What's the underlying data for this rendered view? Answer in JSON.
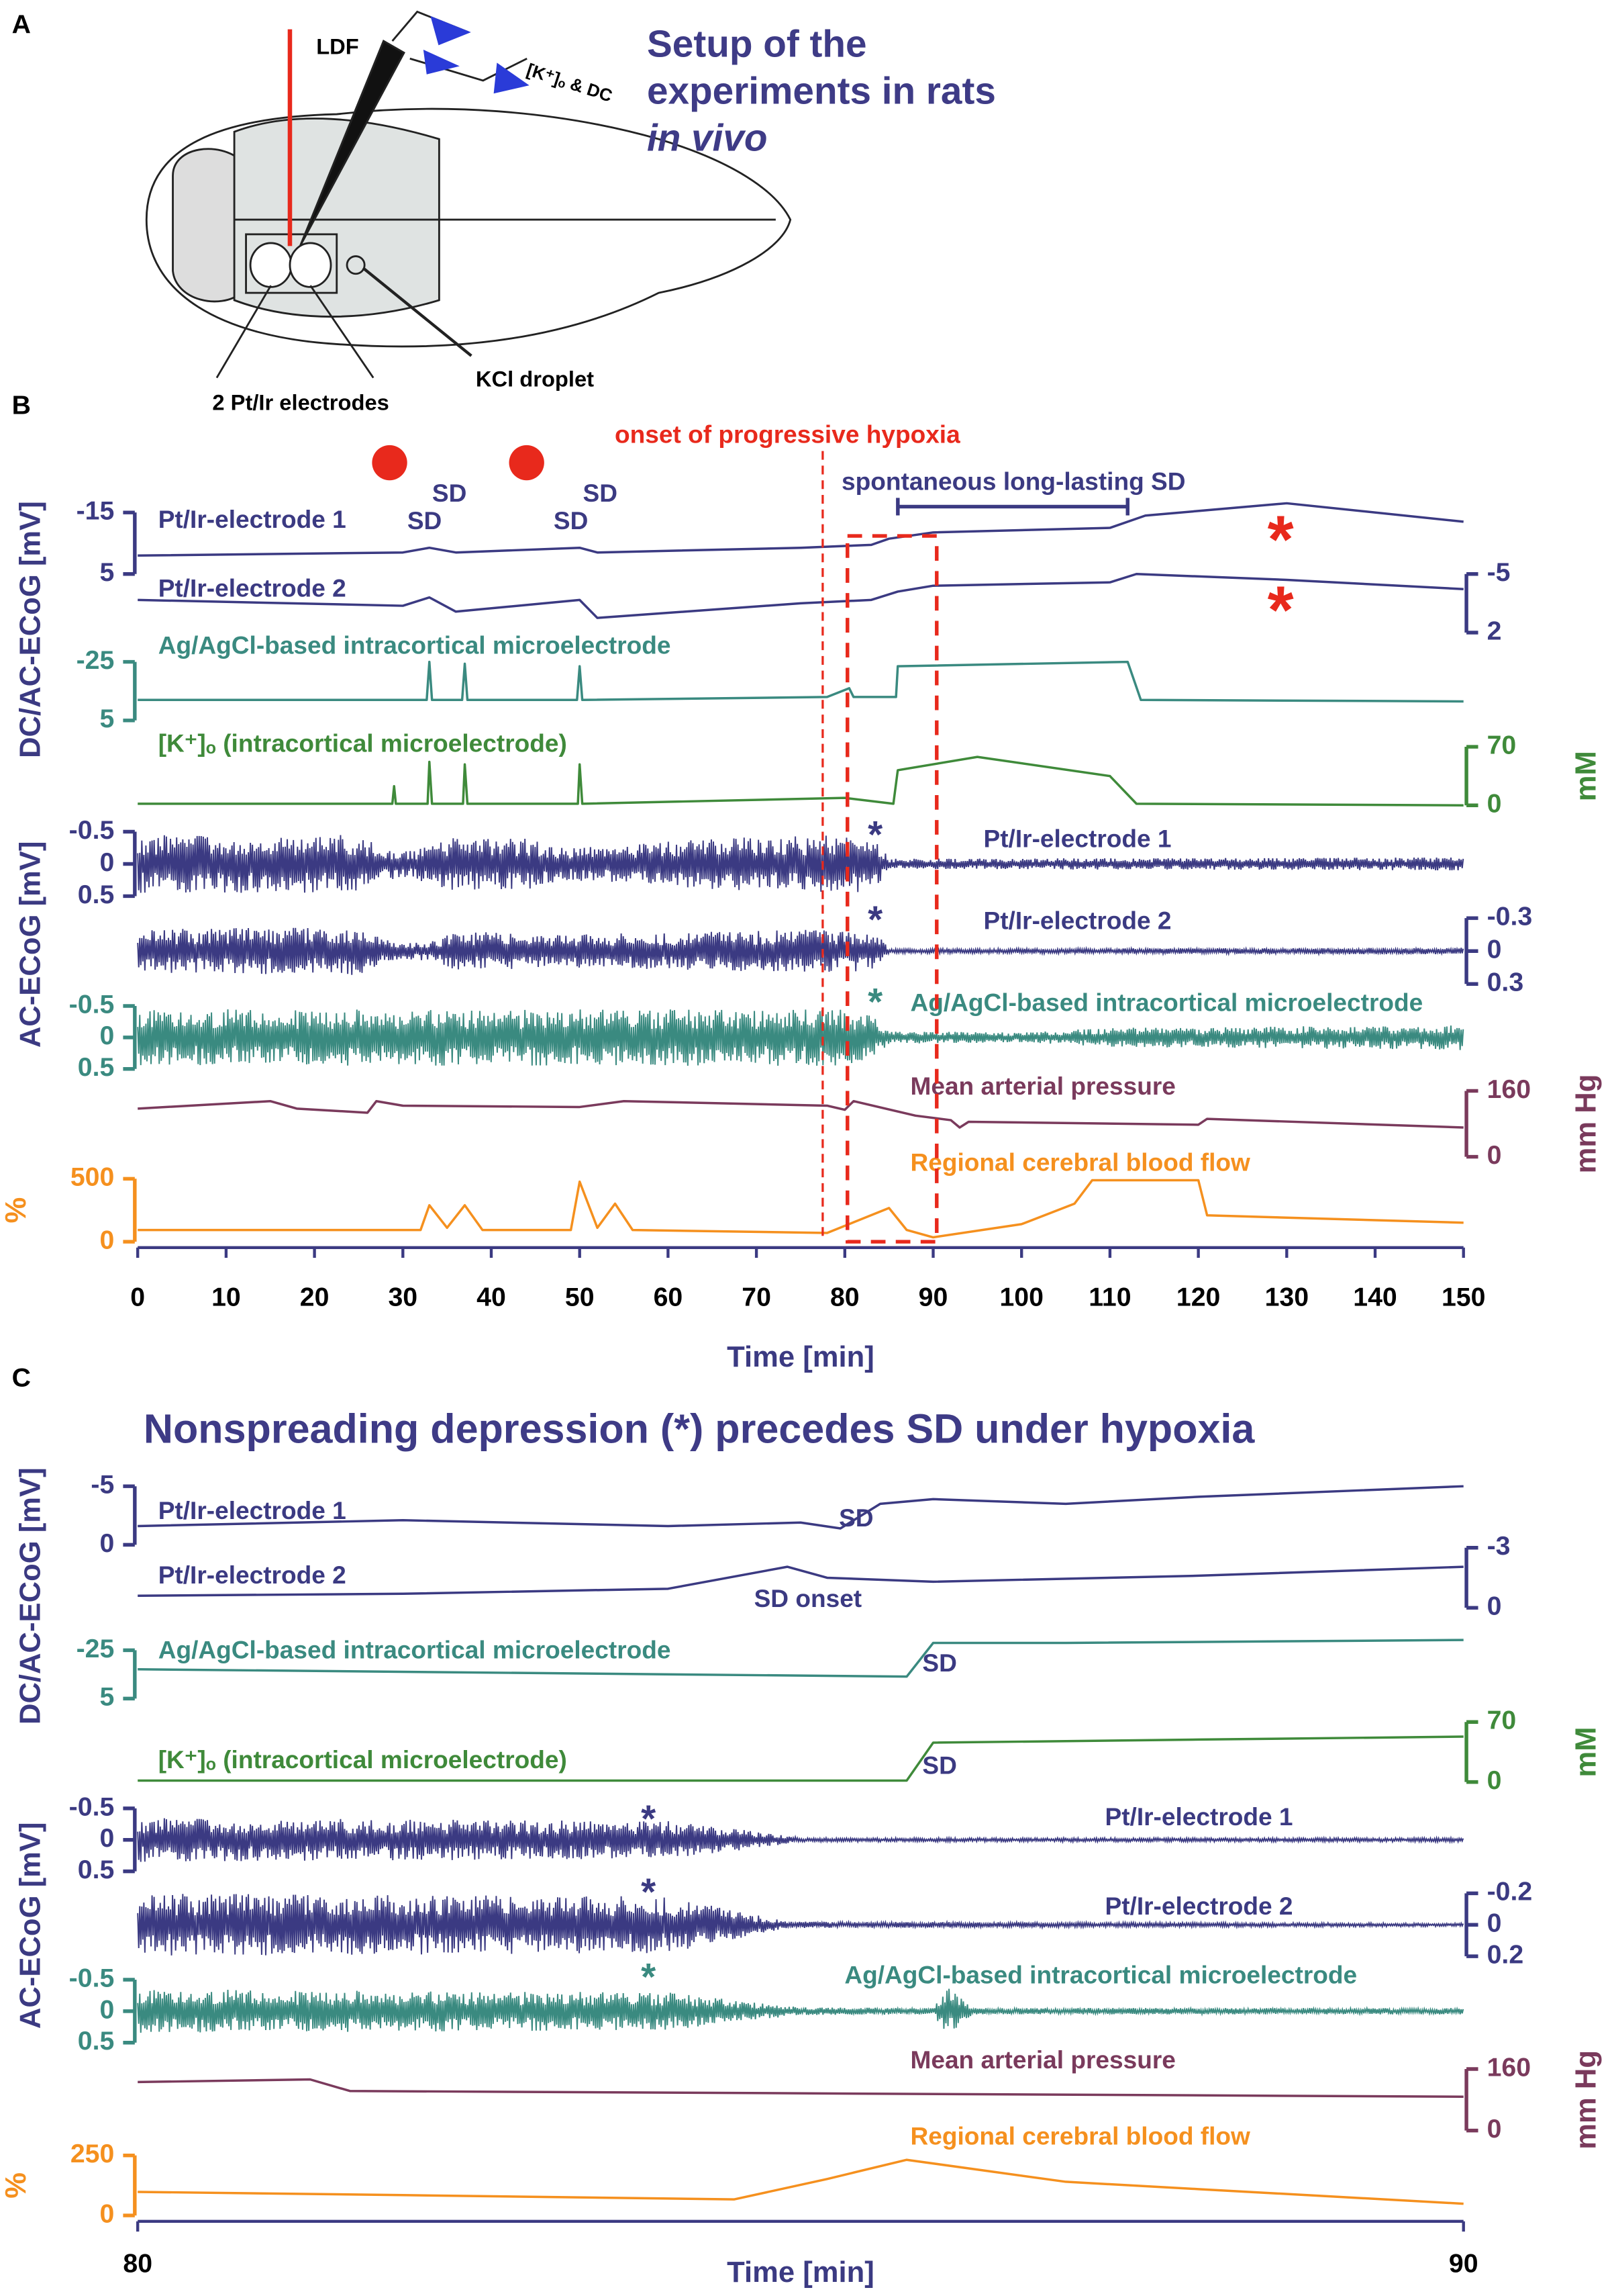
{
  "panel_a": {
    "label": "A",
    "ldf": "LDF",
    "probe": "[K⁺]ₒ & DC",
    "title_1": "Setup of the",
    "title_2": "experiments in rats",
    "title_3": "in vivo",
    "electrodes": "2 Pt/Ir electrodes",
    "kcl": "KCl droplet"
  },
  "panel_b": {
    "label": "B",
    "hypoxia_label": "onset of progressive hypoxia",
    "hypoxia_onset": 77.5,
    "box_range": [
      80.3,
      90.4
    ],
    "kcl_times": [
      28.5,
      44
    ],
    "spont_label": "spontaneous long-lasting SD",
    "spont_range": [
      86,
      112
    ],
    "annotations": [
      "SD",
      "SD",
      "SD",
      "SD",
      "*",
      "*",
      "*",
      "*",
      "*"
    ],
    "ylabel_dc": "DC/AC-ECoG [mV]",
    "ylabel_ac": "AC-ECoG [mV]",
    "xlabel": "Time [min]",
    "xlim": [
      0,
      150
    ],
    "xticks": [
      0,
      10,
      20,
      30,
      40,
      50,
      60,
      70,
      80,
      90,
      100,
      110,
      120,
      130,
      140,
      150
    ],
    "tracks": [
      {
        "label": "Pt/Ir-electrode 1",
        "color": "#3b3a82",
        "kind": "line",
        "axis_side": "left",
        "lim": [
          -15,
          5
        ],
        "ticks": [
          -15,
          5
        ],
        "points": [
          [
            0,
            -1
          ],
          [
            30,
            -2
          ],
          [
            33,
            -3.5
          ],
          [
            36,
            -2
          ],
          [
            50,
            -3.5
          ],
          [
            52,
            -2
          ],
          [
            75,
            -3.5
          ],
          [
            83,
            -4.5
          ],
          [
            85,
            -6.5
          ],
          [
            90,
            -8.5
          ],
          [
            110,
            -10
          ],
          [
            114,
            -14
          ],
          [
            130,
            -18
          ],
          [
            150,
            -12
          ]
        ]
      },
      {
        "label": "Pt/Ir-electrode 2",
        "color": "#3b3a82",
        "kind": "line",
        "axis_side": "right",
        "lim": [
          -5,
          2
        ],
        "ticks": [
          -5,
          2
        ],
        "points": [
          [
            0,
            -1.9
          ],
          [
            30,
            -1.2
          ],
          [
            33,
            -2.2
          ],
          [
            36,
            -0.5
          ],
          [
            50,
            -1.9
          ],
          [
            52,
            0.25
          ],
          [
            75,
            -1.5
          ],
          [
            83,
            -1.9
          ],
          [
            86,
            -2.9
          ],
          [
            90,
            -3.6
          ],
          [
            110,
            -4
          ],
          [
            113,
            -5
          ],
          [
            130,
            -4.3
          ],
          [
            150,
            -3.2
          ]
        ]
      },
      {
        "label": "Ag/AgCl-based intracortical microelectrode",
        "color": "#3a8a80",
        "kind": "line",
        "axis_side": "left",
        "lim": [
          -25,
          5
        ],
        "ticks": [
          -25,
          5
        ],
        "points": [
          [
            0,
            -5.5
          ],
          [
            32.7,
            -5.5
          ],
          [
            33,
            -25
          ],
          [
            33.3,
            -5.5
          ],
          [
            36.7,
            -5.5
          ],
          [
            37,
            -24
          ],
          [
            37.3,
            -5.5
          ],
          [
            49.7,
            -5.5
          ],
          [
            50,
            -22.75
          ],
          [
            50.3,
            -5.5
          ],
          [
            78,
            -7
          ],
          [
            80.5,
            -11.5
          ],
          [
            81,
            -7
          ],
          [
            85.8,
            -7
          ],
          [
            86,
            -22.75
          ],
          [
            112,
            -25
          ],
          [
            113.5,
            -5.5
          ],
          [
            150,
            -4.75
          ]
        ]
      },
      {
        "label": "[K⁺]ₒ (intracortical microelectrode)",
        "color": "#3f8a3a",
        "kind": "line",
        "axis_side": "right",
        "unit": "mM",
        "lim": [
          70,
          0
        ],
        "ticks": [
          70,
          0
        ],
        "points": [
          [
            0,
            2
          ],
          [
            28.8,
            2
          ],
          [
            29,
            23
          ],
          [
            29.2,
            2
          ],
          [
            32.8,
            2
          ],
          [
            33,
            52
          ],
          [
            33.3,
            2
          ],
          [
            36.8,
            2
          ],
          [
            37,
            49
          ],
          [
            37.3,
            2
          ],
          [
            49.8,
            2
          ],
          [
            50,
            49
          ],
          [
            50.3,
            2
          ],
          [
            80,
            9
          ],
          [
            85.5,
            2
          ],
          [
            86,
            42
          ],
          [
            95,
            58
          ],
          [
            110,
            35
          ],
          [
            113,
            2
          ],
          [
            150,
            0
          ]
        ]
      },
      {
        "label": "Pt/Ir-electrode 1",
        "color": "#3b3a82",
        "kind": "noise",
        "axis_side": "left",
        "lim": [
          -0.5,
          0.5
        ],
        "ticks": [
          -0.5,
          0,
          0.5
        ],
        "points": [
          [
            0,
            0.45
          ],
          [
            25,
            0.45
          ],
          [
            28,
            0.25
          ],
          [
            31,
            0.2
          ],
          [
            34,
            0.4
          ],
          [
            45,
            0.4
          ],
          [
            48,
            0.25
          ],
          [
            55,
            0.3
          ],
          [
            65,
            0.4
          ],
          [
            82,
            0.45
          ],
          [
            84,
            0.3
          ],
          [
            85,
            0.08
          ],
          [
            150,
            0.1
          ]
        ]
      },
      {
        "label": "Pt/Ir-electrode 2",
        "color": "#3b3a82",
        "kind": "noise",
        "axis_side": "right",
        "lim": [
          -0.3,
          0.3
        ],
        "ticks": [
          -0.3,
          0,
          0.3
        ],
        "points": [
          [
            0,
            0.2
          ],
          [
            25,
            0.22
          ],
          [
            28,
            0.1
          ],
          [
            33,
            0.08
          ],
          [
            36,
            0.18
          ],
          [
            48,
            0.15
          ],
          [
            55,
            0.16
          ],
          [
            80,
            0.2
          ],
          [
            84,
            0.15
          ],
          [
            85,
            0.02
          ],
          [
            150,
            0.03
          ]
        ]
      },
      {
        "label": "Ag/AgCl-based intracortical microelectrode",
        "color": "#3a8a80",
        "kind": "noise",
        "axis_side": "left",
        "lim": [
          -0.5,
          0.5
        ],
        "ticks": [
          -0.5,
          0,
          0.5
        ],
        "points": [
          [
            0,
            0.45
          ],
          [
            80,
            0.45
          ],
          [
            83,
            0.35
          ],
          [
            85,
            0.1
          ],
          [
            100,
            0.08
          ],
          [
            110,
            0.15
          ],
          [
            150,
            0.2
          ]
        ]
      },
      {
        "label": "Mean arterial pressure",
        "color": "#7a3a5c",
        "kind": "line",
        "axis_side": "right",
        "unit": "mm Hg",
        "lim": [
          160,
          0
        ],
        "ticks": [
          160,
          0
        ],
        "points": [
          [
            0,
            117
          ],
          [
            15,
            135
          ],
          [
            18,
            117
          ],
          [
            26,
            107
          ],
          [
            27,
            135
          ],
          [
            30,
            124
          ],
          [
            50,
            121
          ],
          [
            55,
            135
          ],
          [
            78,
            124
          ],
          [
            80,
            114
          ],
          [
            81,
            135
          ],
          [
            88,
            100
          ],
          [
            92,
            89
          ],
          [
            93,
            71
          ],
          [
            94,
            85
          ],
          [
            120,
            78
          ],
          [
            121,
            92
          ],
          [
            150,
            71
          ]
        ]
      },
      {
        "label": "Regional cerebral blood flow",
        "color": "#f5901e",
        "kind": "line",
        "axis_side": "left",
        "unit": "%",
        "lim": [
          500,
          0
        ],
        "ticks": [
          500,
          0
        ],
        "points": [
          [
            0,
            93
          ],
          [
            32,
            93
          ],
          [
            33,
            290
          ],
          [
            35,
            110
          ],
          [
            37,
            290
          ],
          [
            39,
            93
          ],
          [
            49,
            93
          ],
          [
            50,
            477
          ],
          [
            52,
            110
          ],
          [
            54,
            302
          ],
          [
            56,
            93
          ],
          [
            78,
            70
          ],
          [
            85,
            267
          ],
          [
            87,
            93
          ],
          [
            90,
            35
          ],
          [
            100,
            140
          ],
          [
            106,
            302
          ],
          [
            108,
            488
          ],
          [
            120,
            488
          ],
          [
            121,
            209
          ],
          [
            150,
            151
          ]
        ]
      }
    ]
  },
  "panel_c": {
    "label": "C",
    "title": "Nonspreading depression (*) precedes SD under hypoxia",
    "annotations": [
      "SD",
      "SD onset",
      "SD",
      "SD",
      "*",
      "*",
      "*"
    ],
    "ylabel_dc": "DC/AC-ECoG [mV]",
    "ylabel_ac": "AC-ECoG [mV]",
    "xlabel": "Time [min]",
    "xlim": [
      80,
      90
    ],
    "xticks": [
      80,
      90
    ],
    "tracks": [
      {
        "label": "Pt/Ir-electrode 1",
        "color": "#3b3a82",
        "kind": "line",
        "axis_side": "left",
        "lim": [
          -5,
          0
        ],
        "ticks": [
          -5,
          0
        ],
        "points": [
          [
            80,
            -1.6
          ],
          [
            82,
            -2.1
          ],
          [
            84,
            -1.6
          ],
          [
            85,
            -1.9
          ],
          [
            85.3,
            -1.4
          ],
          [
            85.6,
            -3.5
          ],
          [
            86,
            -3.9
          ],
          [
            87,
            -3.5
          ],
          [
            88,
            -4.1
          ],
          [
            90,
            -5
          ]
        ]
      },
      {
        "label": "Pt/Ir-electrode 2",
        "color": "#3b3a82",
        "kind": "line",
        "axis_side": "right",
        "lim": [
          -3,
          0
        ],
        "ticks": [
          -3,
          0
        ],
        "points": [
          [
            80,
            -0.6
          ],
          [
            82,
            -0.7
          ],
          [
            84,
            -0.95
          ],
          [
            84.9,
            -2.05
          ],
          [
            85.2,
            -1.5
          ],
          [
            86,
            -1.3
          ],
          [
            88,
            -1.6
          ],
          [
            90,
            -2.05
          ]
        ]
      },
      {
        "label": "Ag/AgCl-based intracortical microelectrode",
        "color": "#3a8a80",
        "kind": "line",
        "axis_side": "left",
        "lim": [
          -25,
          5
        ],
        "ticks": [
          -25,
          5
        ],
        "points": [
          [
            80,
            -13.2
          ],
          [
            85.8,
            -8.6
          ],
          [
            86,
            -29.5
          ],
          [
            87,
            -29.5
          ],
          [
            90,
            -31.4
          ]
        ]
      },
      {
        "label": "[K⁺]ₒ (intracortical microelectrode)",
        "color": "#3f8a3a",
        "kind": "line",
        "axis_side": "right",
        "unit": "mM",
        "lim": [
          70,
          0
        ],
        "ticks": [
          70,
          0
        ],
        "points": [
          [
            80,
            1.7
          ],
          [
            85.8,
            1.7
          ],
          [
            86,
            46
          ],
          [
            88,
            49.5
          ],
          [
            90,
            53
          ]
        ]
      },
      {
        "label": "Pt/Ir-electrode 1",
        "color": "#3b3a82",
        "kind": "noise",
        "axis_side": "left",
        "lim": [
          -0.5,
          0.5
        ],
        "ticks": [
          -0.5,
          0,
          0.5
        ],
        "points": [
          [
            80,
            0.35
          ],
          [
            84,
            0.3
          ],
          [
            84.8,
            0.1
          ],
          [
            85,
            0.03
          ],
          [
            90,
            0.03
          ]
        ]
      },
      {
        "label": "Pt/Ir-electrode 2",
        "color": "#3b3a82",
        "kind": "noise",
        "axis_side": "right",
        "lim": [
          -0.2,
          0.2
        ],
        "ticks": [
          -0.2,
          0,
          0.2
        ],
        "points": [
          [
            80,
            0.2
          ],
          [
            84,
            0.18
          ],
          [
            84.9,
            0.02
          ],
          [
            90,
            0.01
          ]
        ]
      },
      {
        "label": "Ag/AgCl-based intracortical microelectrode",
        "color": "#3a8a80",
        "kind": "noise",
        "axis_side": "left",
        "lim": [
          -0.5,
          0.5
        ],
        "ticks": [
          -0.5,
          0,
          0.5
        ],
        "points": [
          [
            80,
            0.35
          ],
          [
            84,
            0.3
          ],
          [
            85,
            0.06
          ],
          [
            86,
            0.05
          ],
          [
            86.1,
            0.4
          ],
          [
            86.3,
            0.05
          ],
          [
            90,
            0.05
          ]
        ]
      },
      {
        "label": "Mean arterial pressure",
        "color": "#7a3a5c",
        "kind": "line",
        "axis_side": "right",
        "unit": "mm Hg",
        "lim": [
          160,
          0
        ],
        "ticks": [
          160,
          0
        ],
        "points": [
          [
            80,
            126
          ],
          [
            81.3,
            133
          ],
          [
            81.6,
            103
          ],
          [
            90,
            88
          ]
        ]
      },
      {
        "label": "Regional cerebral blood flow",
        "color": "#f5901e",
        "kind": "line",
        "axis_side": "left",
        "unit": "%",
        "lim": [
          250,
          0
        ],
        "ticks": [
          250,
          0
        ],
        "points": [
          [
            80,
            98
          ],
          [
            82,
            85
          ],
          [
            84.5,
            67
          ],
          [
            85.2,
            152
          ],
          [
            85.8,
            232
          ],
          [
            87,
            140
          ],
          [
            88,
            110
          ],
          [
            90,
            49
          ]
        ]
      }
    ]
  }
}
